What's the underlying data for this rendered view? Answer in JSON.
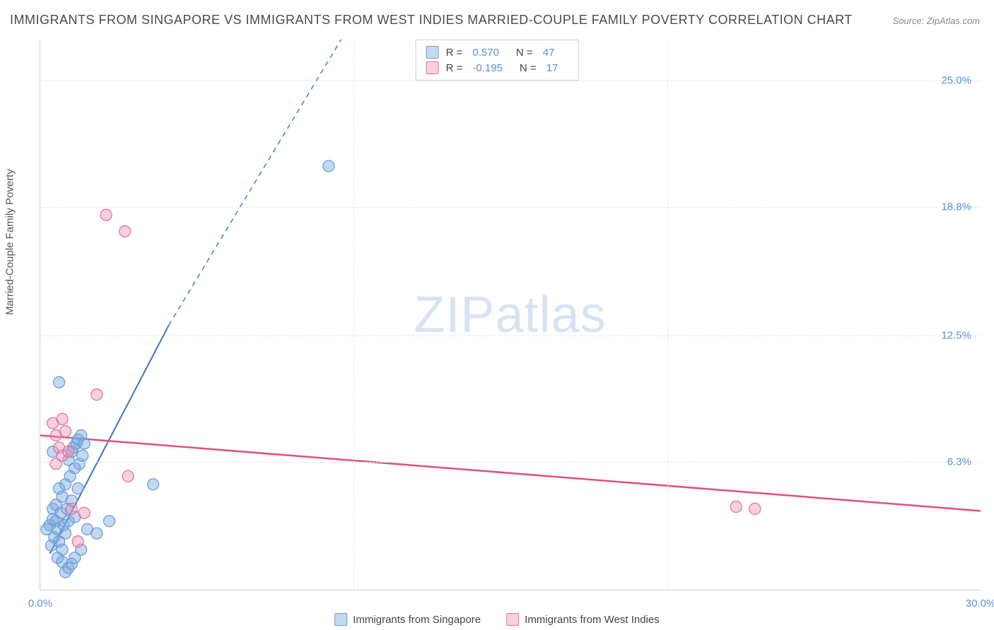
{
  "title": "IMMIGRANTS FROM SINGAPORE VS IMMIGRANTS FROM WEST INDIES MARRIED-COUPLE FAMILY POVERTY CORRELATION CHART",
  "source": "Source: ZipAtlas.com",
  "watermark": "ZIPatlas",
  "y_axis_label": "Married-Couple Family Poverty",
  "chart": {
    "type": "scatter",
    "xlim": [
      0,
      30
    ],
    "ylim": [
      0,
      27
    ],
    "x_ticks": [
      0,
      10,
      20,
      30
    ],
    "y_ticks": [
      6.3,
      12.5,
      18.8,
      25.0
    ],
    "x_tick_labels": [
      "0.0%",
      "",
      "",
      "30.0%"
    ],
    "y_tick_labels": [
      "6.3%",
      "12.5%",
      "18.8%",
      "25.0%"
    ],
    "grid_color": "#e5e5e5",
    "background_color": "#ffffff",
    "axis_color": "#d0d0d0",
    "tick_label_color": "#5b8fd6"
  },
  "series": [
    {
      "name": "Immigrants from Singapore",
      "color_fill": "rgba(122,168,224,0.45)",
      "color_stroke": "#6a9fd8",
      "marker_r": 8,
      "R": "0.570",
      "N": "47",
      "trend": {
        "x1": 0.3,
        "y1": 1.8,
        "x2": 4.1,
        "y2": 13.0,
        "dash_x2": 9.6,
        "dash_y2": 27.0,
        "stroke": "#3d74c7",
        "width": 2
      },
      "points": [
        [
          0.2,
          3.0
        ],
        [
          0.3,
          3.2
        ],
        [
          0.35,
          2.2
        ],
        [
          0.4,
          3.5
        ],
        [
          0.4,
          4.0
        ],
        [
          0.45,
          2.6
        ],
        [
          0.5,
          3.4
        ],
        [
          0.5,
          4.2
        ],
        [
          0.55,
          3.0
        ],
        [
          0.6,
          2.4
        ],
        [
          0.6,
          5.0
        ],
        [
          0.65,
          3.8
        ],
        [
          0.7,
          2.0
        ],
        [
          0.7,
          4.6
        ],
        [
          0.75,
          3.2
        ],
        [
          0.8,
          5.2
        ],
        [
          0.8,
          2.8
        ],
        [
          0.85,
          4.0
        ],
        [
          0.9,
          6.4
        ],
        [
          0.9,
          3.4
        ],
        [
          0.95,
          5.6
        ],
        [
          1.0,
          6.8
        ],
        [
          1.0,
          4.4
        ],
        [
          1.05,
          7.0
        ],
        [
          1.1,
          6.0
        ],
        [
          1.1,
          3.6
        ],
        [
          1.15,
          7.2
        ],
        [
          1.2,
          5.0
        ],
        [
          1.2,
          7.4
        ],
        [
          1.25,
          6.2
        ],
        [
          1.3,
          7.6
        ],
        [
          1.35,
          6.6
        ],
        [
          1.4,
          7.2
        ],
        [
          0.6,
          10.2
        ],
        [
          0.55,
          1.6
        ],
        [
          0.7,
          1.4
        ],
        [
          0.8,
          0.9
        ],
        [
          0.9,
          1.1
        ],
        [
          1.0,
          1.3
        ],
        [
          1.1,
          1.6
        ],
        [
          1.5,
          3.0
        ],
        [
          1.8,
          2.8
        ],
        [
          2.2,
          3.4
        ],
        [
          3.6,
          5.2
        ],
        [
          9.2,
          20.8
        ],
        [
          1.3,
          2.0
        ],
        [
          0.4,
          6.8
        ]
      ]
    },
    {
      "name": "Immigrants from West Indies",
      "color_fill": "rgba(238,140,170,0.4)",
      "color_stroke": "#e2739a",
      "marker_r": 8,
      "R": "-0.195",
      "N": "17",
      "trend": {
        "x1": 0,
        "y1": 7.6,
        "x2": 30,
        "y2": 3.9,
        "stroke": "#e14f82",
        "width": 2.5
      },
      "points": [
        [
          0.4,
          8.2
        ],
        [
          0.5,
          7.6
        ],
        [
          0.5,
          6.2
        ],
        [
          0.6,
          7.0
        ],
        [
          0.7,
          8.4
        ],
        [
          0.7,
          6.6
        ],
        [
          0.8,
          7.8
        ],
        [
          1.0,
          4.0
        ],
        [
          1.2,
          2.4
        ],
        [
          1.4,
          3.8
        ],
        [
          1.8,
          9.6
        ],
        [
          2.8,
          5.6
        ],
        [
          2.1,
          18.4
        ],
        [
          2.7,
          17.6
        ],
        [
          22.2,
          4.1
        ],
        [
          22.8,
          4.0
        ],
        [
          0.9,
          6.8
        ]
      ]
    }
  ],
  "legend_top": {
    "rows": [
      {
        "swatch_fill": "rgba(122,168,224,0.45)",
        "swatch_stroke": "#6a9fd8",
        "R_label": "R =",
        "R_val": "0.570",
        "N_label": "N =",
        "N_val": "47"
      },
      {
        "swatch_fill": "rgba(238,140,170,0.4)",
        "swatch_stroke": "#e2739a",
        "R_label": "R =",
        "R_val": "-0.195",
        "N_label": "N =",
        "N_val": "17"
      }
    ]
  },
  "legend_bottom": {
    "items": [
      {
        "swatch_fill": "rgba(122,168,224,0.45)",
        "swatch_stroke": "#6a9fd8",
        "label": "Immigrants from Singapore"
      },
      {
        "swatch_fill": "rgba(238,140,170,0.4)",
        "swatch_stroke": "#e2739a",
        "label": "Immigrants from West Indies"
      }
    ]
  }
}
